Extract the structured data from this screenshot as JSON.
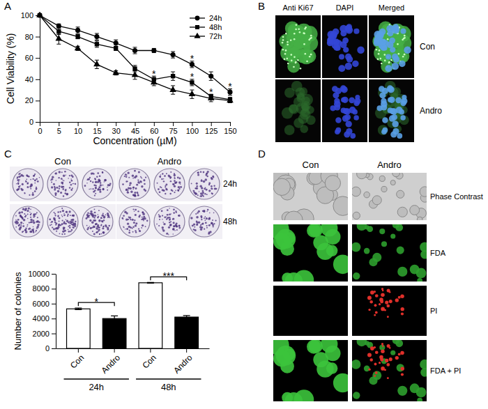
{
  "panel_labels": [
    "A",
    "B",
    "C",
    "D"
  ],
  "chart_data": [
    {
      "type": "line",
      "x_label": "Concentration (µM)",
      "y_label": "Cell Viability (%)",
      "categories": [
        "0",
        "5",
        "10",
        "15",
        "30",
        "45",
        "60",
        "75",
        "100",
        "125",
        "150"
      ],
      "series": [
        {
          "name": "24h",
          "color": "#000000",
          "marker": "circle",
          "values": [
            100,
            90,
            86,
            80,
            74,
            67,
            67,
            63,
            54,
            43,
            28
          ],
          "errors": [
            0,
            2,
            3,
            3,
            3,
            3,
            2,
            3,
            3,
            4,
            3
          ]
        },
        {
          "name": "48h",
          "color": "#000000",
          "marker": "square",
          "values": [
            100,
            85,
            80,
            73,
            69,
            50,
            40,
            43,
            37,
            24,
            21
          ],
          "errors": [
            0,
            3,
            2,
            3,
            2,
            3,
            3,
            4,
            3,
            2,
            2
          ]
        },
        {
          "name": "72h",
          "color": "#000000",
          "marker": "triangle",
          "values": [
            100,
            78,
            69,
            54,
            46,
            44,
            37,
            30,
            26,
            22,
            20
          ],
          "errors": [
            0,
            5,
            2,
            4,
            2,
            4,
            3,
            4,
            4,
            3,
            2
          ]
        }
      ],
      "ylim": [
        0,
        100
      ],
      "yticks": [
        0,
        20,
        40,
        60,
        80,
        100
      ],
      "legend": "upper right",
      "annotations": [
        {
          "text": "*",
          "x": "60",
          "y": 46
        },
        {
          "text": "*",
          "x": "100",
          "y": 60
        },
        {
          "text": "*",
          "x": "100",
          "y": 43
        },
        {
          "text": "*",
          "x": "125",
          "y": 29
        },
        {
          "text": "*",
          "x": "150",
          "y": 34
        }
      ]
    },
    {
      "type": "bar",
      "y_label": "Number of colonies",
      "categories": [
        "Con",
        "Andro",
        "Con",
        "Andro"
      ],
      "groups": [
        "24h",
        "48h"
      ],
      "values": [
        5300,
        4000,
        8800,
        4200
      ],
      "errors": [
        100,
        350,
        50,
        200
      ],
      "colors": [
        "#ffffff",
        "#000000",
        "#ffffff",
        "#000000"
      ],
      "ylim": [
        0,
        10000
      ],
      "yticks": [
        0,
        2000,
        4000,
        6000,
        8000,
        10000
      ],
      "annotations": [
        {
          "text": "*",
          "from": 0,
          "to": 1
        },
        {
          "text": "***",
          "from": 2,
          "to": 3
        }
      ]
    }
  ],
  "panel_b": {
    "columns": [
      "Anti Ki67",
      "DAPI",
      "Merged"
    ],
    "rows": [
      "Con",
      "Andro"
    ]
  },
  "panel_c": {
    "columns": [
      "Con",
      "Andro"
    ],
    "rows": [
      "24h",
      "48h"
    ]
  },
  "panel_d": {
    "columns": [
      "Con",
      "Andro"
    ],
    "rows": [
      "Phase Contrast",
      "FDA",
      "PI",
      "FDA + PI"
    ]
  }
}
